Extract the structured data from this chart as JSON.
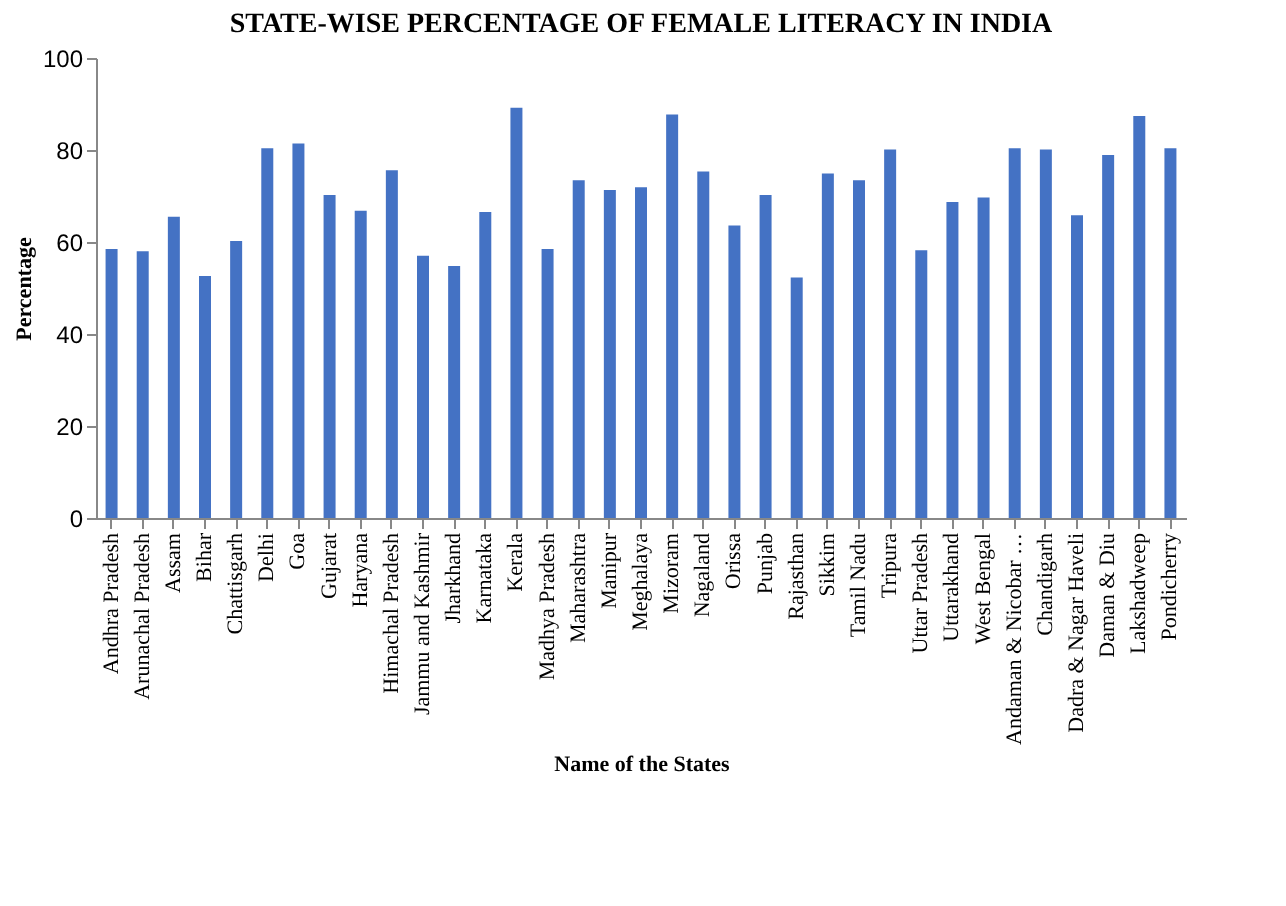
{
  "chart_data": {
    "type": "bar",
    "title": "STATE-WISE PERCENTAGE OF FEMALE LITERACY IN INDIA",
    "xlabel": "Name of the States",
    "ylabel": "Percentage",
    "categories": [
      "Andhra Pradesh",
      "Arunachal Pradesh",
      "Assam",
      "Bihar",
      "Chattisgarh",
      "Delhi",
      "Goa",
      "Gujarat",
      "Haryana",
      "Himachal Pradesh",
      "Jammu and Kashmir",
      "Jharkhand",
      "Karnataka",
      "Kerala",
      "Madhya Pradesh",
      "Maharashtra",
      "Manipur",
      "Meghalaya",
      "Mizoram",
      "Nagaland",
      "Orissa",
      "Punjab",
      "Rajasthan",
      "Sikkim",
      "Tamil Nadu",
      "Tripura",
      "Uttar Pradesh",
      "Uttarakhand",
      "West Bengal",
      "Andaman & Nicobar …",
      "Chandigarh",
      "Dadra & Nagar Haveli",
      "Daman & Diu",
      "Lakshadweep",
      "Pondicherry"
    ],
    "values": [
      58.5,
      58,
      65.5,
      52.6,
      60.2,
      80.4,
      81.4,
      70.2,
      66.8,
      75.6,
      57,
      54.8,
      66.5,
      89.2,
      58.5,
      73.4,
      71.3,
      71.9,
      87.7,
      75.3,
      63.6,
      70.2,
      52.3,
      74.9,
      73.4,
      80.1,
      58.2,
      68.7,
      69.7,
      80.4,
      80.1,
      65.8,
      78.9,
      87.4,
      80.4
    ],
    "color": "#4472c4",
    "ylim": [
      0,
      100
    ],
    "yticks": [
      0,
      20,
      40,
      60,
      80,
      100
    ],
    "grid": false
  }
}
